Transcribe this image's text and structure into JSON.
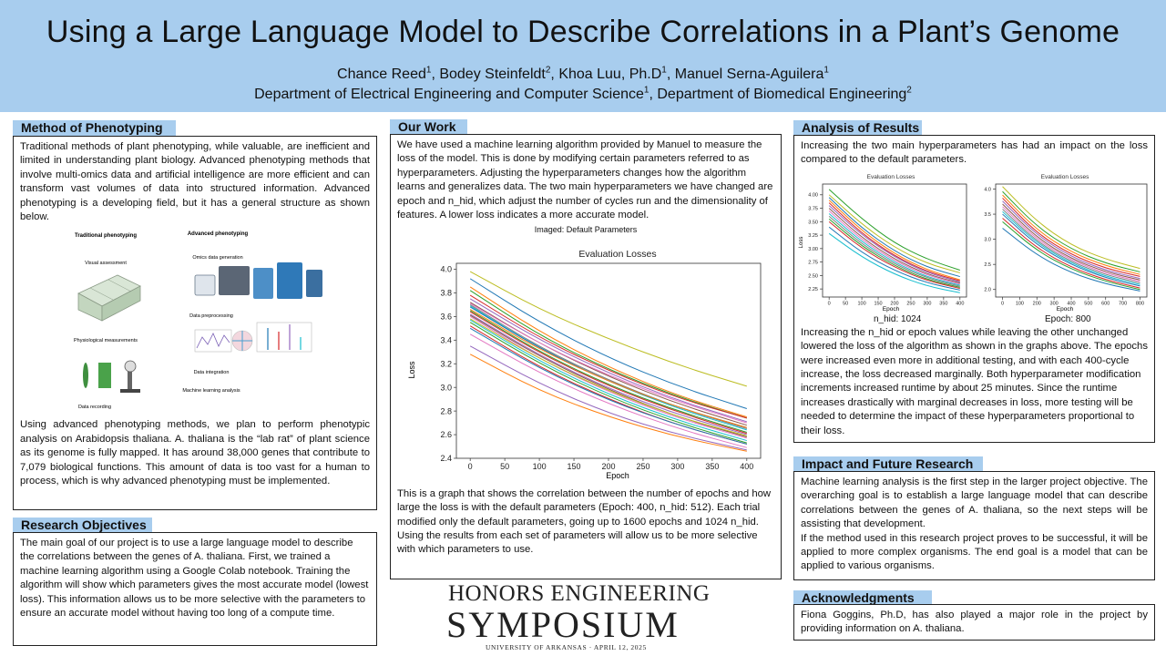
{
  "header": {
    "title": "Using a Large Language Model to Describe Correlations in a Plant’s Genome",
    "authors": [
      {
        "name": "Chance Reed",
        "sup": "1",
        "sep": ", "
      },
      {
        "name": "Bodey Steinfeldt",
        "sup": "2",
        "sep": ", "
      },
      {
        "name": "Khoa Luu, Ph.D",
        "sup": "1",
        "sep": ", "
      },
      {
        "name": "Manuel Serna-Aguilera",
        "sup": "1",
        "sep": ""
      }
    ],
    "dept1": "Department of Electrical Engineering and Computer Science",
    "dept1_sup": "1",
    "dept_sep": ", ",
    "dept2": "Department of Biomedical Engineering",
    "dept2_sup": "2"
  },
  "method": {
    "heading": "Method of Phenotyping",
    "para1": "Traditional methods of plant phenotyping, while valuable, are inefficient and limited in understanding plant biology. Advanced phenotyping methods that involve multi-omics data and artificial intelligence are more efficient and can transform vast volumes of data into structured information. Advanced phenotyping is a developing field, but it has a general structure as shown below.",
    "para2": "Using advanced phenotyping methods, we plan to perform phenotypic analysis on Arabidopsis thaliana. A. thaliana is the “lab rat” of plant science as its genome is fully mapped. It has around 38,000 genes that contribute to 7,079 biological functions. This amount of data is too vast for a human to process, which is why advanced phenotyping must be implemented.",
    "figure": {
      "trad_title": "Traditional phenotyping",
      "adv_title": "Advanced phenotyping",
      "visual": "Visual assessment",
      "omics": "Omics data generation",
      "preproc": "Data preprocessing",
      "physio": "Physiological measurements",
      "integration": "Data integration",
      "ml": "Machine learning analysis",
      "recording": "Data recording"
    }
  },
  "objectives": {
    "heading": "Research Objectives",
    "text": "The main goal of our project is to use a large language model to describe the correlations between the genes of A. thaliana. First, we trained a machine learning algorithm using a Google Colab notebook. Training the algorithm will show which parameters gives the most accurate model (lowest loss). This information allows us to be more selective with the parameters to ensure an accurate model without having too long of a compute time."
  },
  "work": {
    "heading": "Our Work",
    "para1": "We have used a machine learning algorithm provided by Manuel to measure the loss of the model. This is done by modifying certain parameters referred to as hyperparameters. Adjusting the hyperparameters changes how the algorithm learns and generalizes data. The two main hyperparameters we have changed are epoch and n_hid, which adjust the number of cycles run and the dimensionality of features. A lower loss indicates a more accurate model.",
    "chart_caption": "Imaged: Default Parameters",
    "para2": "This is a graph that shows the correlation between the number of epochs and how large the loss is with the default parameters (Epoch: 400, n_hid: 512). Each trial modified only the default parameters, going up to 1600 epochs and 1024 n_hid. Using the results from each set of parameters will allow us to be more selective with which parameters to use."
  },
  "analysis": {
    "heading": "Analysis of Results",
    "para1": "Increasing the two main hyperparameters has had an impact on the loss compared to the default parameters.",
    "cap1": "n_hid: 1024",
    "cap2": "Epoch: 800",
    "para2": "Increasing the n_hid or epoch values while leaving the other unchanged lowered the loss of the algorithm as shown in the graphs above. The epochs were increased even more in additional testing, and with each 400-cycle increase, the loss decreased marginally. Both hyperparameter modification increments increased runtime by about 25 minutes. Since the runtime increases drastically with marginal decreases in loss, more testing will be needed to determine the impact of these hyperparameters proportional to their loss."
  },
  "impact": {
    "heading": "Impact and Future Research",
    "para1": "Machine learning analysis is the first step in the larger project objective. The overarching goal is to establish a large language model that can describe correlations between the genes of A. thaliana, so the next steps will be assisting that development.",
    "para2": "If the method used in this research project proves to be successful, it will be applied to more complex organisms. The end goal is a model that can be applied to various organisms."
  },
  "ack": {
    "heading": "Acknowledgments",
    "text": "Fiona Goggins, Ph.D, has also played a major role in the project by providing information on A. thaliana."
  },
  "logo": {
    "line1": "HONORS ENGINEERING",
    "line2": "SYMPOSIUM",
    "line3": "UNIVERSITY OF ARKANSAS · APRIL 12, 2025"
  },
  "chart_data": [
    {
      "type": "line",
      "title": "Evaluation Losses",
      "xlabel": "Epoch",
      "ylabel": "Loss",
      "xlim": [
        -20,
        420
      ],
      "ylim": [
        2.4,
        4.05
      ],
      "xticks": [
        0,
        50,
        100,
        150,
        200,
        250,
        300,
        350,
        400
      ],
      "yticks": [
        2.4,
        2.6,
        2.8,
        3.0,
        3.2,
        3.4,
        3.6,
        3.8,
        4.0
      ],
      "x": [
        0,
        100,
        200,
        300,
        400
      ],
      "series": [
        {
          "values": [
            3.98,
            3.66,
            3.41,
            3.19,
            3.01
          ],
          "color": "#bcbd22"
        },
        {
          "values": [
            3.92,
            3.55,
            3.25,
            3.01,
            2.82
          ],
          "color": "#1f77b4"
        },
        {
          "values": [
            3.85,
            3.47,
            3.17,
            2.93,
            2.75
          ],
          "color": "#ff7f0e"
        },
        {
          "values": [
            3.82,
            3.44,
            3.15,
            2.92,
            2.74
          ],
          "color": "#2ca02c"
        },
        {
          "values": [
            3.78,
            3.42,
            3.14,
            2.91,
            2.74
          ],
          "color": "#d62728"
        },
        {
          "values": [
            3.75,
            3.4,
            3.12,
            2.89,
            2.71
          ],
          "color": "#9467bd"
        },
        {
          "values": [
            3.72,
            3.37,
            3.09,
            2.86,
            2.68
          ],
          "color": "#8c564b"
        },
        {
          "values": [
            3.71,
            3.37,
            3.1,
            2.88,
            2.7
          ],
          "color": "#e377c2"
        },
        {
          "values": [
            3.7,
            3.34,
            3.06,
            2.83,
            2.65
          ],
          "color": "#7f7f7f"
        },
        {
          "values": [
            3.69,
            3.33,
            3.05,
            2.82,
            2.64
          ],
          "color": "#17becf"
        },
        {
          "values": [
            3.68,
            3.33,
            3.05,
            2.83,
            2.66
          ],
          "color": "#1f77b4"
        },
        {
          "values": [
            3.66,
            3.32,
            3.05,
            2.83,
            2.66
          ],
          "color": "#ff7f0e"
        },
        {
          "values": [
            3.65,
            3.3,
            3.02,
            2.8,
            2.62
          ],
          "color": "#2ca02c"
        },
        {
          "values": [
            3.64,
            3.29,
            3.01,
            2.79,
            2.61
          ],
          "color": "#d62728"
        },
        {
          "values": [
            3.62,
            3.27,
            2.99,
            2.77,
            2.6
          ],
          "color": "#9467bd"
        },
        {
          "values": [
            3.61,
            3.26,
            2.98,
            2.75,
            2.58
          ],
          "color": "#8c564b"
        },
        {
          "values": [
            3.6,
            3.24,
            2.96,
            2.74,
            2.57
          ],
          "color": "#e377c2"
        },
        {
          "values": [
            3.58,
            3.24,
            2.97,
            2.75,
            2.59
          ],
          "color": "#bcbd22"
        },
        {
          "values": [
            3.57,
            3.22,
            2.94,
            2.72,
            2.55
          ],
          "color": "#17becf"
        },
        {
          "values": [
            3.55,
            3.2,
            2.92,
            2.7,
            2.53
          ],
          "color": "#2ca02c"
        },
        {
          "values": [
            3.52,
            3.17,
            2.9,
            2.68,
            2.52
          ],
          "color": "#d62728"
        },
        {
          "values": [
            3.5,
            3.16,
            2.89,
            2.68,
            2.52
          ],
          "color": "#1f77b4"
        },
        {
          "values": [
            3.45,
            3.12,
            2.86,
            2.65,
            2.49
          ],
          "color": "#e377c2"
        },
        {
          "values": [
            3.35,
            3.03,
            2.78,
            2.6,
            2.47
          ],
          "color": "#9467bd"
        },
        {
          "values": [
            3.28,
            2.97,
            2.75,
            2.58,
            2.46
          ],
          "color": "#ff7f0e"
        }
      ]
    },
    {
      "type": "line",
      "title": "Evaluation Losses",
      "xlabel": "Epoch",
      "ylabel": "Loss",
      "xlim": [
        -20,
        420
      ],
      "ylim": [
        2.1,
        4.2
      ],
      "xticks": [
        0,
        50,
        100,
        150,
        200,
        250,
        300,
        350,
        400
      ],
      "yticks": [
        2.25,
        2.5,
        2.75,
        3.0,
        3.25,
        3.5,
        3.75,
        4.0
      ],
      "x": [
        0,
        100,
        200,
        300,
        400
      ],
      "series": [
        {
          "values": [
            4.1,
            3.55,
            3.1,
            2.8,
            2.6
          ],
          "color": "#2ca02c"
        },
        {
          "values": [
            4.0,
            3.45,
            3.02,
            2.72,
            2.55
          ],
          "color": "#bcbd22"
        },
        {
          "values": [
            3.95,
            3.38,
            2.95,
            2.65,
            2.48
          ],
          "color": "#1f77b4"
        },
        {
          "values": [
            3.9,
            3.33,
            2.9,
            2.6,
            2.42
          ],
          "color": "#ff7f0e"
        },
        {
          "values": [
            3.85,
            3.28,
            2.86,
            2.57,
            2.4
          ],
          "color": "#d62728"
        },
        {
          "values": [
            3.8,
            3.25,
            2.84,
            2.55,
            2.38
          ],
          "color": "#9467bd"
        },
        {
          "values": [
            3.75,
            3.2,
            2.8,
            2.52,
            2.36
          ],
          "color": "#8c564b"
        },
        {
          "values": [
            3.7,
            3.16,
            2.77,
            2.5,
            2.34
          ],
          "color": "#e377c2"
        },
        {
          "values": [
            3.65,
            3.12,
            2.74,
            2.47,
            2.32
          ],
          "color": "#17becf"
        },
        {
          "values": [
            3.6,
            3.08,
            2.71,
            2.45,
            2.3
          ],
          "color": "#7f7f7f"
        },
        {
          "values": [
            3.55,
            3.04,
            2.68,
            2.42,
            2.28
          ],
          "color": "#2ca02c"
        },
        {
          "values": [
            3.5,
            3.0,
            2.65,
            2.4,
            2.26
          ],
          "color": "#d62728"
        },
        {
          "values": [
            3.4,
            2.92,
            2.59,
            2.36,
            2.23
          ],
          "color": "#1f77b4"
        },
        {
          "values": [
            3.28,
            2.84,
            2.52,
            2.3,
            2.18
          ],
          "color": "#17becf"
        }
      ]
    },
    {
      "type": "line",
      "title": "Evaluation Losses",
      "xlabel": "Epoch",
      "ylabel": "",
      "xlim": [
        -40,
        840
      ],
      "ylim": [
        1.85,
        4.1
      ],
      "xticks": [
        0,
        100,
        200,
        300,
        400,
        500,
        600,
        700,
        800
      ],
      "yticks": [
        2.0,
        2.5,
        3.0,
        3.5,
        4.0
      ],
      "x": [
        0,
        200,
        400,
        600,
        800
      ],
      "series": [
        {
          "values": [
            4.05,
            3.35,
            2.88,
            2.6,
            2.42
          ],
          "color": "#bcbd22"
        },
        {
          "values": [
            3.95,
            3.25,
            2.8,
            2.52,
            2.35
          ],
          "color": "#2ca02c"
        },
        {
          "values": [
            3.88,
            3.18,
            2.74,
            2.47,
            2.3
          ],
          "color": "#ff7f0e"
        },
        {
          "values": [
            3.82,
            3.12,
            2.69,
            2.42,
            2.26
          ],
          "color": "#d62728"
        },
        {
          "values": [
            3.76,
            3.08,
            2.65,
            2.38,
            2.22
          ],
          "color": "#9467bd"
        },
        {
          "values": [
            3.7,
            3.03,
            2.61,
            2.35,
            2.19
          ],
          "color": "#8c564b"
        },
        {
          "values": [
            3.65,
            2.99,
            2.58,
            2.32,
            2.16
          ],
          "color": "#e377c2"
        },
        {
          "values": [
            3.6,
            2.95,
            2.55,
            2.29,
            2.13
          ],
          "color": "#7f7f7f"
        },
        {
          "values": [
            3.55,
            2.92,
            2.52,
            2.26,
            2.1
          ],
          "color": "#17becf"
        },
        {
          "values": [
            3.5,
            2.88,
            2.49,
            2.23,
            2.07
          ],
          "color": "#1f77b4"
        },
        {
          "values": [
            3.42,
            2.82,
            2.44,
            2.19,
            2.03
          ],
          "color": "#d62728"
        },
        {
          "values": [
            3.35,
            2.77,
            2.4,
            2.16,
            2.0
          ],
          "color": "#2ca02c"
        },
        {
          "values": [
            3.22,
            2.68,
            2.33,
            2.11,
            1.97
          ],
          "color": "#1f77b4"
        }
      ]
    }
  ]
}
